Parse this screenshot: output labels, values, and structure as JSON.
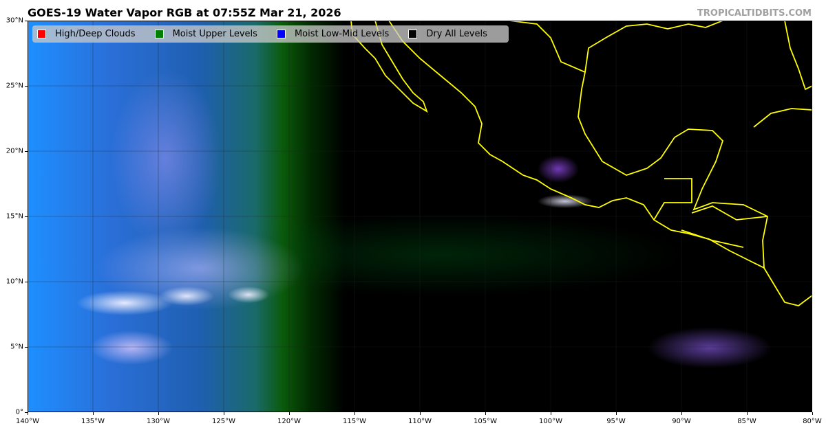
{
  "header": {
    "title": "GOES-19 Water Vapor RGB at 07:55Z Mar 21, 2026",
    "brand": "TROPICALTIDBITS.COM"
  },
  "legend": [
    {
      "label": "High/Deep Clouds",
      "color": "#ff0000"
    },
    {
      "label": "Moist Upper Levels",
      "color": "#008000"
    },
    {
      "label": "Moist Low-Mid Levels",
      "color": "#0000ff"
    },
    {
      "label": "Dry All Levels",
      "color": "#000000"
    }
  ],
  "map": {
    "lon_range": [
      -140,
      -80
    ],
    "lat_range": [
      0,
      30
    ],
    "coastline_color": "#ffff00",
    "x_ticks": [
      "140°W",
      "135°W",
      "130°W",
      "125°W",
      "120°W",
      "115°W",
      "110°W",
      "105°W",
      "100°W",
      "95°W",
      "90°W",
      "85°W",
      "80°W"
    ],
    "y_ticks": [
      "0°",
      "5°N",
      "10°N",
      "15°N",
      "20°N",
      "25°N",
      "30°N"
    ]
  }
}
